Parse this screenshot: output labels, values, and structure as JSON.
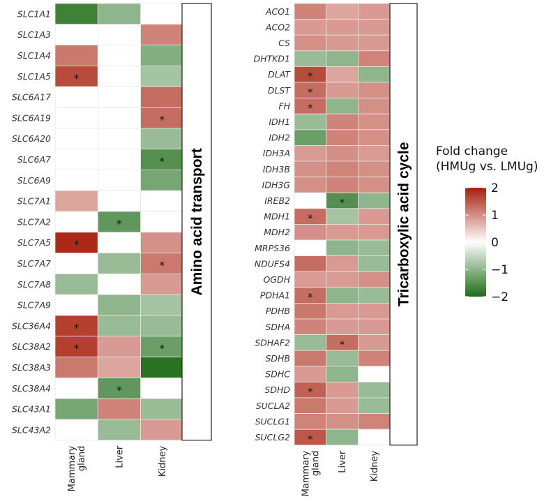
{
  "chart_data": [
    {
      "type": "heatmap",
      "panel_label": "Amino acid transport",
      "columns": [
        "Mammary\ngland",
        "Liver",
        "Kidney"
      ],
      "rows": [
        "SLC1A1",
        "SLC1A3",
        "SLC1A4",
        "SLC1A5",
        "SLC6A17",
        "SLC6A19",
        "SLC6A20",
        "SLC6A7",
        "SLC6A9",
        "SLC7A1",
        "SLC7A2",
        "SLC7A5",
        "SLC7A7",
        "SLC7A8",
        "SLC7A9",
        "SLC36A4",
        "SLC38A2",
        "SLC38A3",
        "SLC38A4",
        "SLC43A1",
        "SLC43A2"
      ],
      "values": [
        [
          -1.7,
          -1.0,
          0.0
        ],
        [
          0.0,
          0.0,
          1.1
        ],
        [
          1.2,
          0.0,
          -1.1
        ],
        [
          1.6,
          0.0,
          -0.8
        ],
        [
          0.0,
          0.0,
          1.3
        ],
        [
          0.0,
          0.0,
          1.3
        ],
        [
          0.0,
          0.0,
          -0.9
        ],
        [
          0.0,
          0.0,
          -1.5
        ],
        [
          0.0,
          0.0,
          -1.2
        ],
        [
          0.8,
          0.0,
          0.0
        ],
        [
          0.0,
          -1.4,
          0.0
        ],
        [
          1.9,
          0.0,
          1.0
        ],
        [
          0.0,
          -0.9,
          1.2
        ],
        [
          -0.9,
          0.0,
          0.9
        ],
        [
          0.0,
          -1.0,
          -0.8
        ],
        [
          1.7,
          -0.9,
          -0.9
        ],
        [
          1.7,
          0.9,
          -1.3
        ],
        [
          1.2,
          0.8,
          -1.9
        ],
        [
          0.0,
          -1.4,
          0.0
        ],
        [
          -1.2,
          1.1,
          -0.9
        ],
        [
          0.0,
          -0.9,
          0.9
        ]
      ],
      "significant": [
        [
          false,
          false,
          false
        ],
        [
          false,
          false,
          false
        ],
        [
          false,
          false,
          false
        ],
        [
          true,
          false,
          false
        ],
        [
          false,
          false,
          false
        ],
        [
          false,
          false,
          true
        ],
        [
          false,
          false,
          false
        ],
        [
          false,
          false,
          true
        ],
        [
          false,
          false,
          false
        ],
        [
          false,
          false,
          false
        ],
        [
          false,
          true,
          false
        ],
        [
          true,
          false,
          false
        ],
        [
          false,
          false,
          true
        ],
        [
          false,
          false,
          false
        ],
        [
          false,
          false,
          false
        ],
        [
          true,
          false,
          false
        ],
        [
          true,
          false,
          true
        ],
        [
          false,
          false,
          false
        ],
        [
          false,
          true,
          false
        ],
        [
          false,
          false,
          false
        ],
        [
          false,
          false,
          false
        ]
      ]
    },
    {
      "type": "heatmap",
      "panel_label": "Tricarboxylic acid cycle",
      "columns": [
        "Mammary\ngland",
        "Liver",
        "Kidney"
      ],
      "rows": [
        "ACO1",
        "ACO2",
        "CS",
        "DHTKD1",
        "DLAT",
        "DLST",
        "FH",
        "IDH1",
        "IDH2",
        "IDH3A",
        "IDH3B",
        "IDH3G",
        "IREB2",
        "MDH1",
        "MDH2",
        "MRPS36",
        "NDUFS4",
        "OGDH",
        "PDHA1",
        "PDHB",
        "SDHA",
        "SDHAF2",
        "SDHB",
        "SDHC",
        "SDHD",
        "SUCLA2",
        "SUCLG1",
        "SUCLG2"
      ],
      "values": [
        [
          1.1,
          0.8,
          0.9
        ],
        [
          0.9,
          0.9,
          0.9
        ],
        [
          1.0,
          0.9,
          0.9
        ],
        [
          -0.9,
          -1.0,
          1.1
        ],
        [
          1.6,
          0.8,
          -1.0
        ],
        [
          1.3,
          0.9,
          1.0
        ],
        [
          1.3,
          -1.0,
          1.0
        ],
        [
          -0.9,
          1.1,
          1.0
        ],
        [
          -1.3,
          1.1,
          1.0
        ],
        [
          0.9,
          1.0,
          0.9
        ],
        [
          1.0,
          1.1,
          1.0
        ],
        [
          1.0,
          1.1,
          1.0
        ],
        [
          0.0,
          -1.5,
          -1.0
        ],
        [
          1.3,
          -0.8,
          0.9
        ],
        [
          1.0,
          0.9,
          0.9
        ],
        [
          0.0,
          -1.0,
          -0.9
        ],
        [
          1.3,
          0.9,
          -0.9
        ],
        [
          0.9,
          0.9,
          1.0
        ],
        [
          1.3,
          -1.0,
          -0.9
        ],
        [
          1.2,
          0.9,
          0.9
        ],
        [
          1.1,
          0.9,
          0.9
        ],
        [
          -0.9,
          1.3,
          0.9
        ],
        [
          1.2,
          -0.9,
          1.1
        ],
        [
          0.9,
          -1.0,
          0.0
        ],
        [
          1.4,
          0.9,
          -0.9
        ],
        [
          1.2,
          0.9,
          -0.9
        ],
        [
          1.1,
          1.0,
          1.1
        ],
        [
          1.5,
          -1.0,
          0.0
        ]
      ],
      "significant": [
        [
          false,
          false,
          false
        ],
        [
          false,
          false,
          false
        ],
        [
          false,
          false,
          false
        ],
        [
          false,
          false,
          false
        ],
        [
          true,
          false,
          false
        ],
        [
          true,
          false,
          false
        ],
        [
          true,
          false,
          false
        ],
        [
          false,
          false,
          false
        ],
        [
          false,
          false,
          false
        ],
        [
          false,
          false,
          false
        ],
        [
          false,
          false,
          false
        ],
        [
          false,
          false,
          false
        ],
        [
          false,
          true,
          false
        ],
        [
          true,
          false,
          false
        ],
        [
          false,
          false,
          false
        ],
        [
          false,
          false,
          false
        ],
        [
          false,
          false,
          false
        ],
        [
          false,
          false,
          false
        ],
        [
          true,
          false,
          false
        ],
        [
          false,
          false,
          false
        ],
        [
          false,
          false,
          false
        ],
        [
          false,
          true,
          false
        ],
        [
          false,
          false,
          false
        ],
        [
          false,
          false,
          false
        ],
        [
          true,
          false,
          false
        ],
        [
          false,
          false,
          false
        ],
        [
          false,
          false,
          false
        ],
        [
          true,
          false,
          false
        ]
      ]
    }
  ],
  "legend": {
    "title_line1": "Fold change",
    "title_line2": "(HMUg vs. LMUg)",
    "ticks": [
      2,
      1,
      0,
      -1,
      -2
    ],
    "tick_labels": [
      "2",
      "1",
      "0",
      "−1",
      "−2"
    ],
    "range": [
      -2,
      2
    ],
    "colors": {
      "high": "#a81e0c",
      "mid": "#ffffff",
      "low": "#1d6b16"
    }
  },
  "significance_marker": "*"
}
